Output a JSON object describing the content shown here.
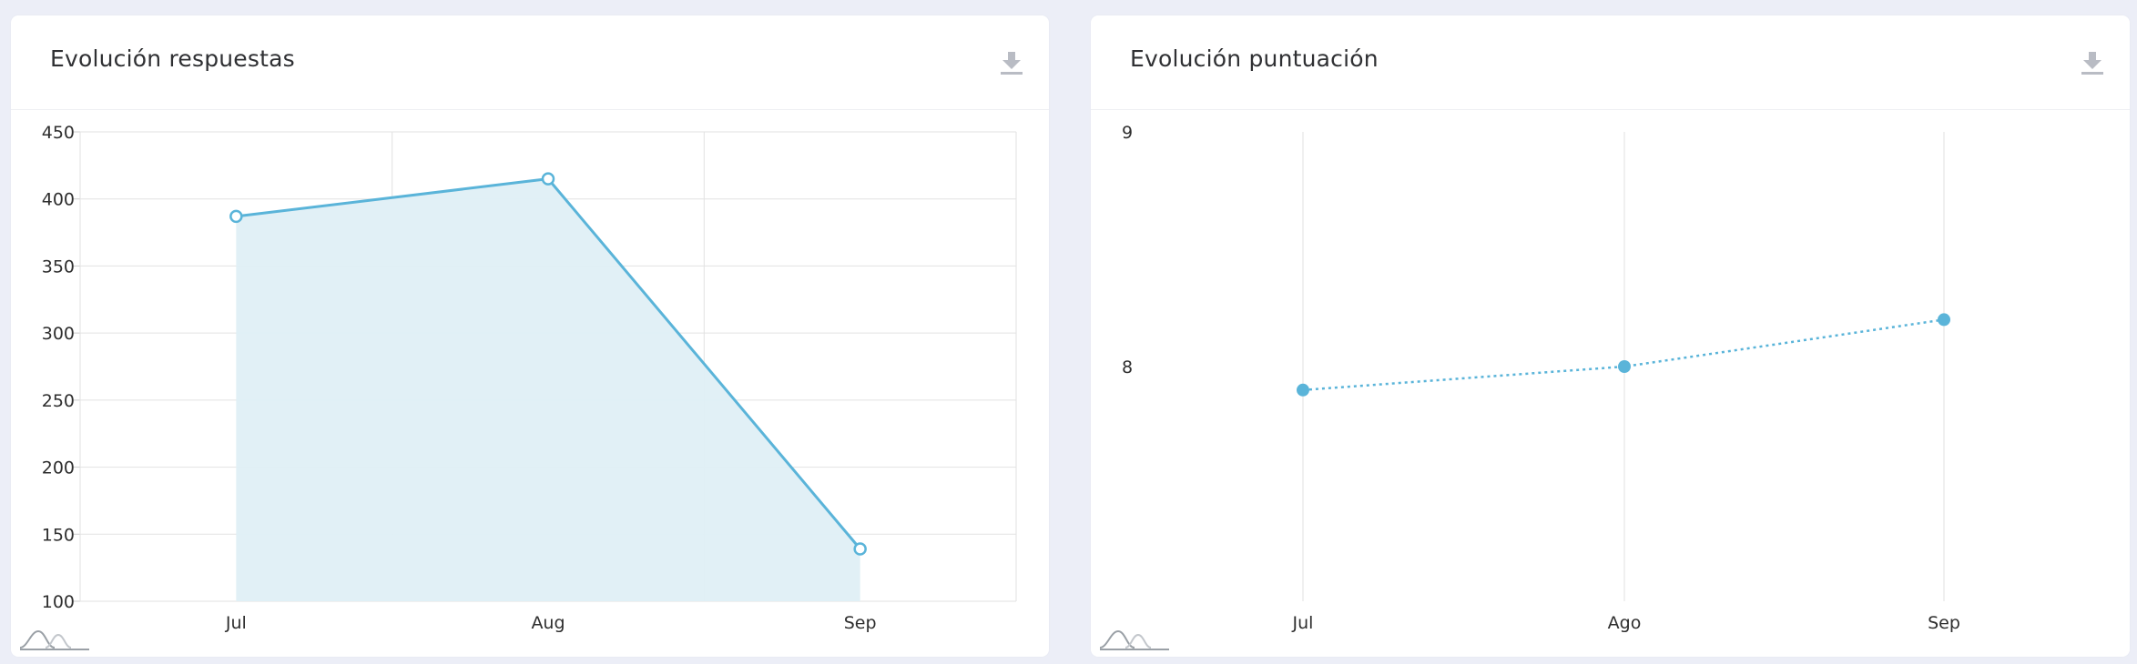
{
  "cards": [
    {
      "title": "Evolución respuestas",
      "download_icon": "download-icon",
      "footer_icon": "wave-logo-icon"
    },
    {
      "title": "Evolución puntuación",
      "download_icon": "download-icon",
      "footer_icon": "wave-logo-icon"
    }
  ],
  "colors": {
    "series": "#5ab4d9",
    "area": "#dfeff6",
    "grid": "#e2e2e2",
    "background": "#eceef7"
  },
  "chart_data": [
    {
      "type": "area",
      "title": "Evolución respuestas",
      "categories": [
        "Jul",
        "Aug",
        "Sep"
      ],
      "series": [
        {
          "values": [
            387,
            415,
            139
          ]
        }
      ],
      "ylim": [
        100,
        450
      ],
      "yticks": [
        "450",
        "400",
        "350",
        "300",
        "250",
        "200",
        "150",
        "100"
      ],
      "grid": true,
      "marker": "hollow-circle"
    },
    {
      "type": "line",
      "title": "Evolución puntuación",
      "categories": [
        "Jul",
        "Ago",
        "Sep"
      ],
      "series": [
        {
          "values": [
            7.9,
            8.0,
            8.2
          ]
        }
      ],
      "ylim": [
        7,
        9
      ],
      "yticks": [
        "9",
        "8"
      ],
      "grid": true,
      "line_style": "dotted",
      "marker": "filled-circle"
    }
  ]
}
